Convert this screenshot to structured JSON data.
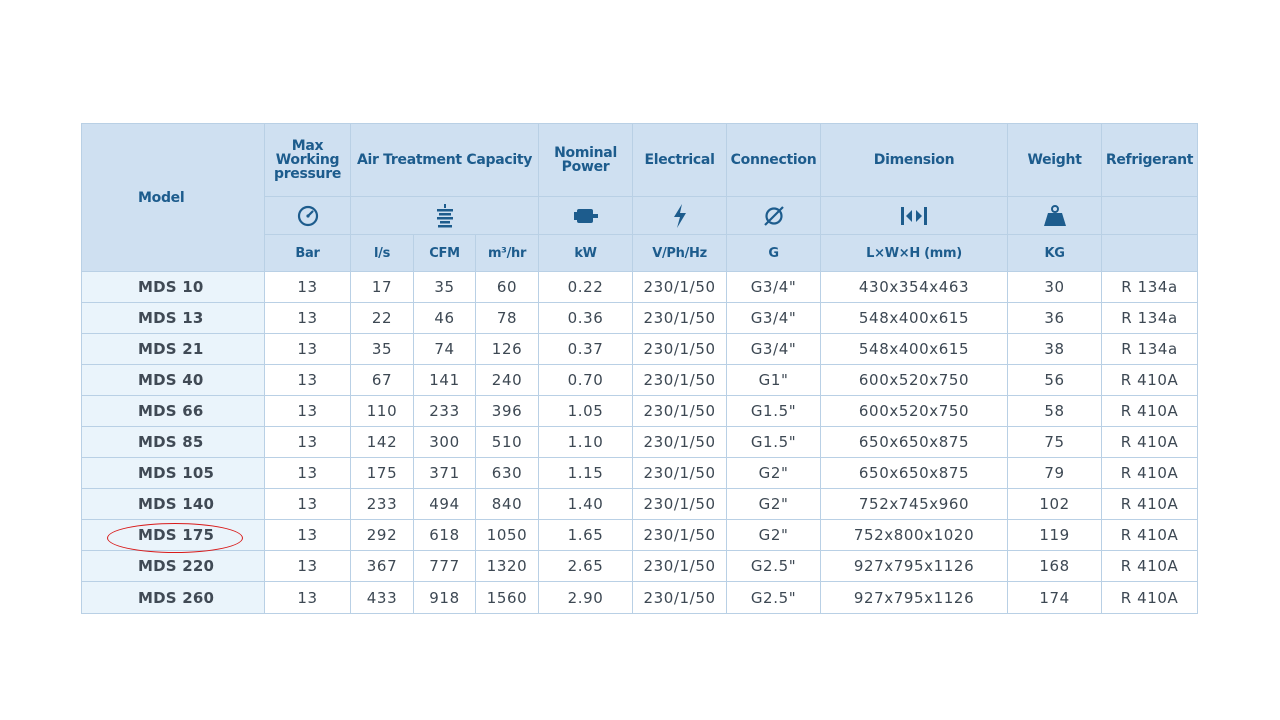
{
  "headers": {
    "model": "Model",
    "max_working_pressure": "Max Working pressure",
    "air_treatment_capacity": "Air Treatment Capacity",
    "nominal_power": "Nominal Power",
    "electrical": "Electrical",
    "connection": "Connection",
    "dimension": "Dimension",
    "weight": "Weight",
    "refrigerant": "Refrigerant"
  },
  "icons": {
    "pressure": "pressure-gauge-icon",
    "air": "air-treatment-icon",
    "power": "motor-icon",
    "electrical": "lightning-bolt-icon",
    "connection": "diameter-icon",
    "dimension": "dimension-arrows-icon",
    "weight": "weight-icon"
  },
  "units": {
    "pressure": "Bar",
    "ls": "l/s",
    "cfm": "CFM",
    "m3hr": "m³/hr",
    "kw": "kW",
    "vphhz": "V/Ph/Hz",
    "g": "G",
    "lwh": "L×W×H (mm)",
    "kg": "KG"
  },
  "rows": [
    {
      "model": "MDS 10",
      "bar": "13",
      "ls": "17",
      "cfm": "35",
      "m3hr": "60",
      "kw": "0.22",
      "elec": "230/1/50",
      "conn": "G3/4\"",
      "dim": "430x354x463",
      "kg": "30",
      "ref": "R 134a"
    },
    {
      "model": "MDS 13",
      "bar": "13",
      "ls": "22",
      "cfm": "46",
      "m3hr": "78",
      "kw": "0.36",
      "elec": "230/1/50",
      "conn": "G3/4\"",
      "dim": "548x400x615",
      "kg": "36",
      "ref": "R 134a"
    },
    {
      "model": "MDS 21",
      "bar": "13",
      "ls": "35",
      "cfm": "74",
      "m3hr": "126",
      "kw": "0.37",
      "elec": "230/1/50",
      "conn": "G3/4\"",
      "dim": "548x400x615",
      "kg": "38",
      "ref": "R 134a"
    },
    {
      "model": "MDS 40",
      "bar": "13",
      "ls": "67",
      "cfm": "141",
      "m3hr": "240",
      "kw": "0.70",
      "elec": "230/1/50",
      "conn": "G1\"",
      "dim": "600x520x750",
      "kg": "56",
      "ref": "R 410A"
    },
    {
      "model": "MDS 66",
      "bar": "13",
      "ls": "110",
      "cfm": "233",
      "m3hr": "396",
      "kw": "1.05",
      "elec": "230/1/50",
      "conn": "G1.5\"",
      "dim": "600x520x750",
      "kg": "58",
      "ref": "R 410A"
    },
    {
      "model": "MDS 85",
      "bar": "13",
      "ls": "142",
      "cfm": "300",
      "m3hr": "510",
      "kw": "1.10",
      "elec": "230/1/50",
      "conn": "G1.5\"",
      "dim": "650x650x875",
      "kg": "75",
      "ref": "R 410A"
    },
    {
      "model": "MDS 105",
      "bar": "13",
      "ls": "175",
      "cfm": "371",
      "m3hr": "630",
      "kw": "1.15",
      "elec": "230/1/50",
      "conn": "G2\"",
      "dim": "650x650x875",
      "kg": "79",
      "ref": "R 410A"
    },
    {
      "model": "MDS 140",
      "bar": "13",
      "ls": "233",
      "cfm": "494",
      "m3hr": "840",
      "kw": "1.40",
      "elec": "230/1/50",
      "conn": "G2\"",
      "dim": "752x745x960",
      "kg": "102",
      "ref": "R 410A"
    },
    {
      "model": "MDS 175",
      "bar": "13",
      "ls": "292",
      "cfm": "618",
      "m3hr": "1050",
      "kw": "1.65",
      "elec": "230/1/50",
      "conn": "G2\"",
      "dim": "752x800x1020",
      "kg": "119",
      "ref": "R 410A"
    },
    {
      "model": "MDS 220",
      "bar": "13",
      "ls": "367",
      "cfm": "777",
      "m3hr": "1320",
      "kw": "2.65",
      "elec": "230/1/50",
      "conn": "G2.5\"",
      "dim": "927x795x1126",
      "kg": "168",
      "ref": "R 410A"
    },
    {
      "model": "MDS 260",
      "bar": "13",
      "ls": "433",
      "cfm": "918",
      "m3hr": "1560",
      "kw": "2.90",
      "elec": "230/1/50",
      "conn": "G2.5\"",
      "dim": "927x795x1126",
      "kg": "174",
      "ref": "R 410A"
    }
  ],
  "highlighted_model": "MDS 175",
  "colors": {
    "header_bg": "#cfe0f1",
    "header_text": "#1d5c8d",
    "model_col_bg": "#eaf4fb",
    "highlight": "#d81b1b"
  }
}
